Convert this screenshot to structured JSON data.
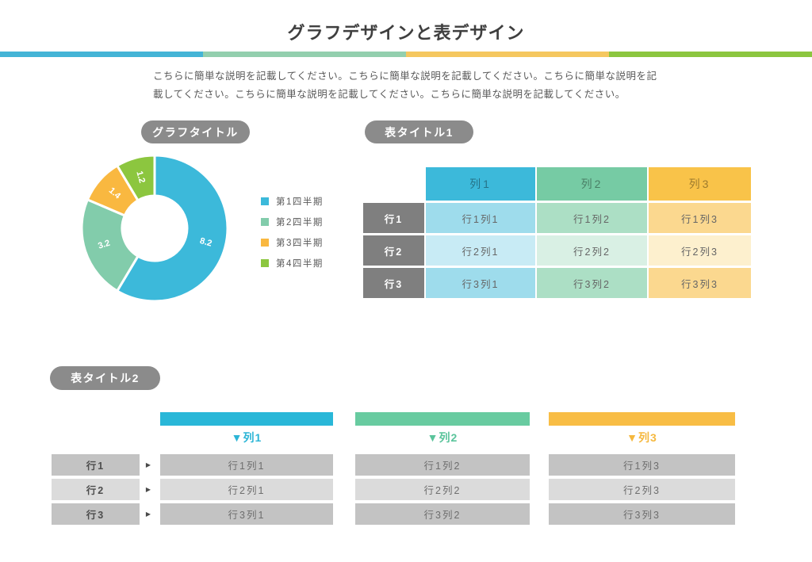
{
  "header": {
    "title": "グラフデザインと表デザイン",
    "description": "こちらに簡単な説明を記載してください。こちらに簡単な説明を記載してください。こちらに簡単な説明を記載してください。こちらに簡単な説明を記載してください。こちらに簡単な説明を記載してください。",
    "accent_bar_colors": [
      "#44B4D6",
      "#93CFAE",
      "#F5C75F",
      "#8CC63F"
    ]
  },
  "chart": {
    "title": "グラフタイトル"
  },
  "chart_data": {
    "type": "pie",
    "subtype": "donut",
    "labels": [
      "第1四半期",
      "第2四半期",
      "第3四半期",
      "第4四半期"
    ],
    "values": [
      8.2,
      3.2,
      1.4,
      1.2
    ],
    "data_labels": [
      "8.2",
      "3.2",
      "1.4",
      "1.2"
    ],
    "colors": [
      "#3CB9DA",
      "#82CCAB",
      "#F9B840",
      "#8CC63F"
    ],
    "legend_position": "right",
    "start_angle_deg": 0,
    "direction": "clockwise"
  },
  "table1": {
    "title": "表タイトル1",
    "row_header_bg": "#7F7F7F",
    "columns": [
      {
        "label": "列1",
        "header_bg": "#3CB9DA",
        "cell_bg_odd": "#9EDCEC",
        "cell_bg_even": "#C8EBF5"
      },
      {
        "label": "列2",
        "header_bg": "#76CBA4",
        "cell_bg_odd": "#ACDFC5",
        "cell_bg_even": "#D9F0E4"
      },
      {
        "label": "列3",
        "header_bg": "#F9C349",
        "cell_bg_odd": "#FBD88F",
        "cell_bg_even": "#FDF0CE"
      }
    ],
    "rows": [
      {
        "label": "行1",
        "cells": [
          "行1列1",
          "行1列2",
          "行1列3"
        ]
      },
      {
        "label": "行2",
        "cells": [
          "行2列1",
          "行2列2",
          "行2列3"
        ]
      },
      {
        "label": "行3",
        "cells": [
          "行3列1",
          "行3列2",
          "行3列3"
        ]
      }
    ]
  },
  "table2": {
    "title": "表タイトル2",
    "cell_bg_odd": "#C3C3C3",
    "cell_bg_even": "#DBDBDB",
    "columns": [
      {
        "label": "▼列1",
        "bar_color": "#29B7D8",
        "label_color": "#2CB5D6"
      },
      {
        "label": "▼列2",
        "bar_color": "#68CBA0",
        "label_color": "#5AC49B"
      },
      {
        "label": "▼列3",
        "bar_color": "#F8BD45",
        "label_color": "#F5B83E"
      }
    ],
    "rows": [
      {
        "label": "行1",
        "cells": [
          "行1列1",
          "行1列2",
          "行1列3"
        ]
      },
      {
        "label": "行2",
        "cells": [
          "行2列1",
          "行2列2",
          "行2列3"
        ]
      },
      {
        "label": "行3",
        "cells": [
          "行3列1",
          "行3列2",
          "行3列3"
        ]
      }
    ]
  }
}
